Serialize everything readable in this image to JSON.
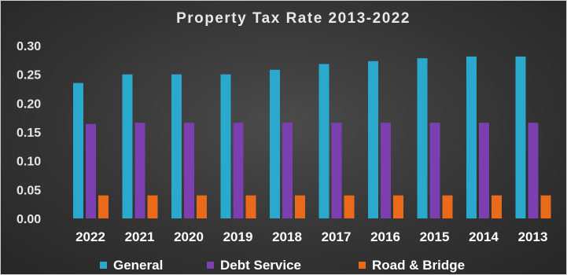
{
  "chart_data": {
    "type": "bar",
    "title": "Property Tax Rate 2013-2022",
    "xlabel": "",
    "ylabel": "",
    "categories": [
      "2022",
      "2021",
      "2020",
      "2019",
      "2018",
      "2017",
      "2016",
      "2015",
      "2014",
      "2013"
    ],
    "series": [
      {
        "name": "General",
        "color": "#2aa9cc",
        "values": [
          0.235,
          0.25,
          0.25,
          0.25,
          0.258,
          0.268,
          0.273,
          0.278,
          0.281,
          0.281
        ]
      },
      {
        "name": "Debt Service",
        "color": "#7b3fb0",
        "values": [
          0.164,
          0.166,
          0.166,
          0.166,
          0.166,
          0.166,
          0.166,
          0.166,
          0.166,
          0.166
        ]
      },
      {
        "name": "Road & Bridge",
        "color": "#e86a1a",
        "values": [
          0.04,
          0.04,
          0.04,
          0.04,
          0.04,
          0.04,
          0.04,
          0.04,
          0.04,
          0.04
        ]
      }
    ],
    "ylim": [
      0,
      0.3
    ],
    "yticks": [
      "0.00",
      "0.05",
      "0.10",
      "0.15",
      "0.20",
      "0.25",
      "0.30"
    ],
    "grid": false,
    "legend_position": "bottom"
  }
}
